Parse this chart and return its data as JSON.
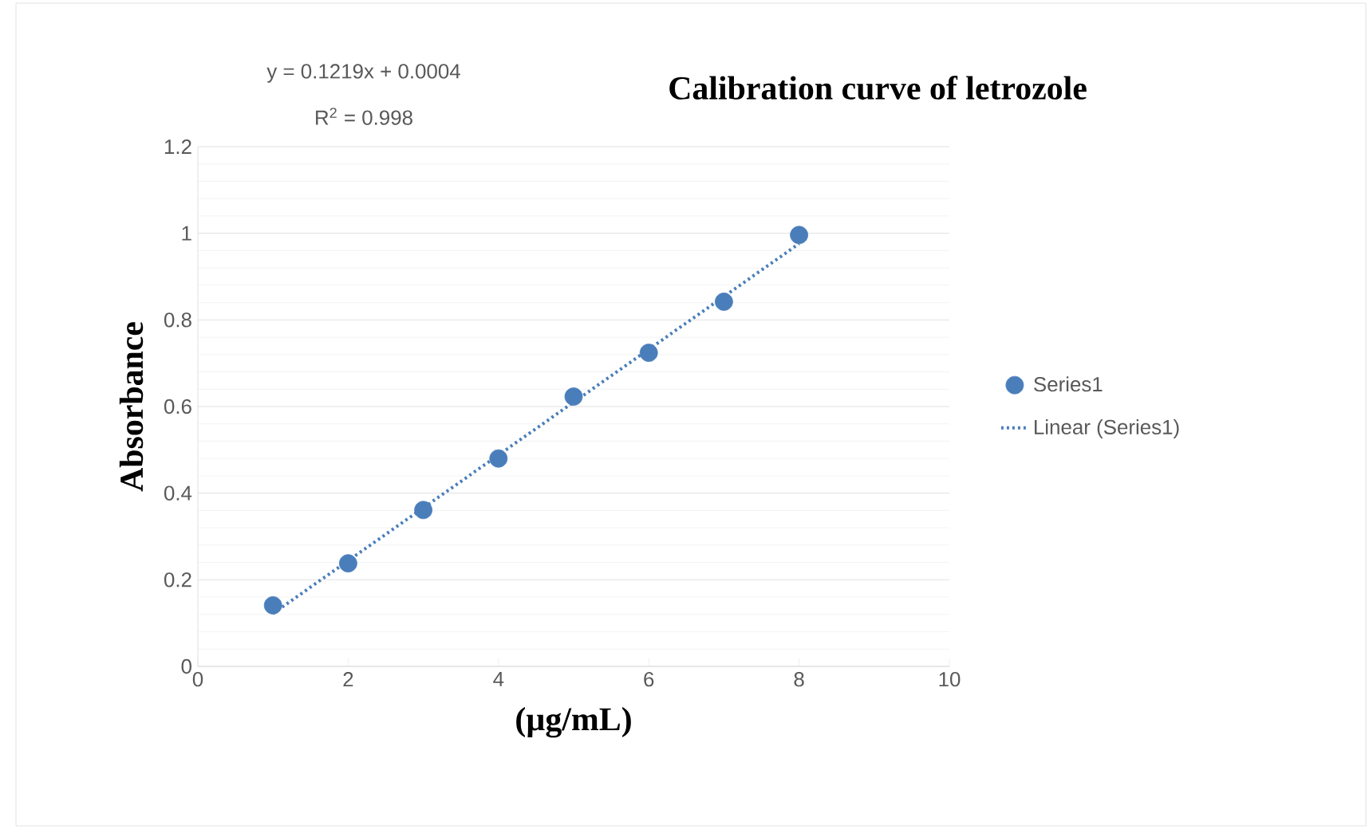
{
  "chart_data": {
    "type": "scatter",
    "title": "Calibration  curve of letrozole",
    "xlabel": "(µg/mL)",
    "ylabel": "Absorbance",
    "annotations": [
      "y = 0.1219x + 0.0004",
      "R$^{2}$ = 0.998"
    ],
    "x": [
      1,
      2,
      3,
      4,
      5,
      6,
      7,
      8
    ],
    "series": [
      {
        "name": "Series1",
        "color": "#4a7ebb",
        "marker": "circle",
        "values": [
          0.141,
          0.238,
          0.361,
          0.48,
          0.623,
          0.724,
          0.842,
          0.996
        ]
      },
      {
        "name": "Linear (Series1)",
        "type": "line",
        "color": "#4a7ebb",
        "marker": "none",
        "line_style": "dotted",
        "x": [
          1,
          8
        ],
        "values": [
          0.122,
          0.976
        ]
      }
    ],
    "xlim": [
      0,
      10
    ],
    "xticks": [
      0,
      2,
      4,
      6,
      8,
      10
    ],
    "ylim": [
      0,
      1.2
    ],
    "yticks": [
      0,
      0.2,
      0.4,
      0.6,
      0.8,
      1,
      1.2
    ],
    "grid": "y",
    "legend": "right"
  }
}
